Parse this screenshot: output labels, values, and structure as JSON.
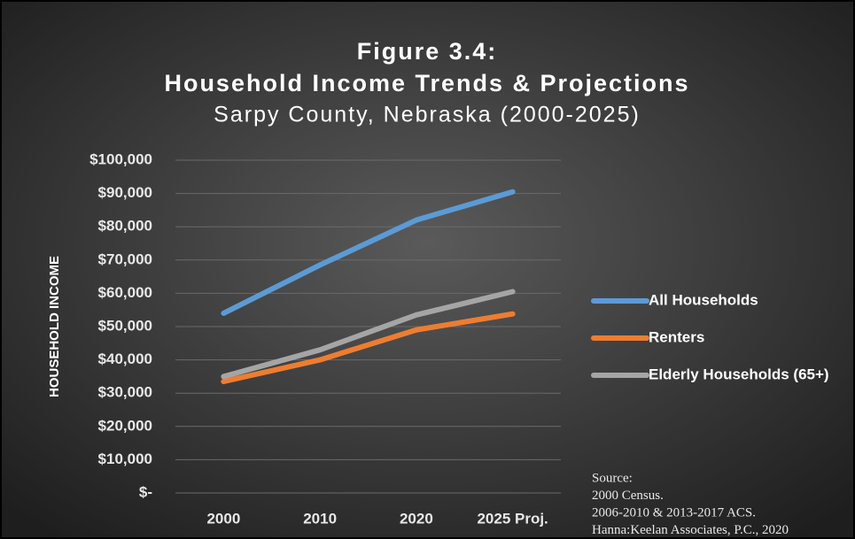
{
  "chart_data": {
    "type": "line",
    "title": "Figure 3.4:",
    "title_line2": "Household Income Trends & Projections",
    "subtitle": "Sarpy County, Nebraska (2000-2025)",
    "y_label": "HOUSEHOLD INCOME",
    "categories": [
      "2000",
      "2010",
      "2020",
      "2025 Proj."
    ],
    "series": [
      {
        "name": "All Households",
        "color": "#5b9bd5",
        "values": [
          54000,
          68500,
          82000,
          90500
        ]
      },
      {
        "name": "Renters",
        "color": "#ed7d31",
        "values": [
          33500,
          40000,
          49000,
          53800
        ]
      },
      {
        "name": "Elderly Households (65+)",
        "color": "#a5a5a5",
        "values": [
          35000,
          43000,
          53500,
          60500
        ]
      }
    ],
    "ylim": [
      0,
      100000
    ],
    "yticks": [
      {
        "value": 0,
        "label": "$-"
      },
      {
        "value": 10000,
        "label": "$10,000"
      },
      {
        "value": 20000,
        "label": "$20,000"
      },
      {
        "value": 30000,
        "label": "$30,000"
      },
      {
        "value": 40000,
        "label": "$40,000"
      },
      {
        "value": 50000,
        "label": "$50,000"
      },
      {
        "value": 60000,
        "label": "$60,000"
      },
      {
        "value": 70000,
        "label": "$70,000"
      },
      {
        "value": 80000,
        "label": "$80,000"
      },
      {
        "value": 90000,
        "label": "$90,000"
      },
      {
        "value": 100000,
        "label": "$100,000"
      }
    ],
    "grid": true,
    "legend": "right",
    "source": [
      "Source:",
      "2000 Census.",
      "2006-2010 & 2013-2017 ACS.",
      "Hanna:Keelan Associates, P.C., 2020"
    ]
  }
}
